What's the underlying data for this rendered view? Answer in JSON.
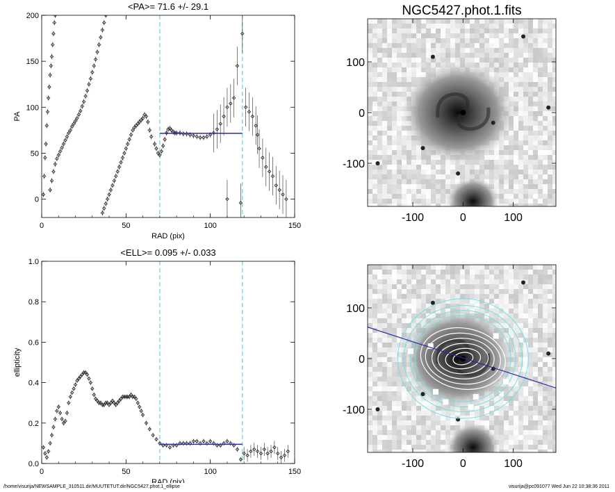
{
  "footer": {
    "path": "/home/visurija/NEWSAMPLE_310511.dir/MUUTETUT.dir/NGC5427.phot.1_ellipse",
    "user": "visurija@pc091077  Wed Jun 22 10:38:36 2011"
  },
  "chart_data": [
    {
      "type": "scatter",
      "title": "<PA>=  71.6 +/-  29.1",
      "xlabel": "RAD (pix)",
      "ylabel": "PA",
      "xlim": [
        0,
        150
      ],
      "ylim": [
        -20,
        200
      ],
      "xticks": [
        0,
        50,
        100,
        150
      ],
      "yticks": [
        0,
        50,
        100,
        150,
        200
      ],
      "fit_line": {
        "x": [
          70,
          119
        ],
        "y": 71.6
      },
      "region_bounds": [
        70,
        119
      ],
      "series": [
        {
          "points": [
            [
              1,
              5
            ],
            [
              1.5,
              25
            ],
            [
              2,
              45
            ],
            [
              2.5,
              60
            ],
            [
              3,
              80
            ],
            [
              3.5,
              95
            ],
            [
              4,
              110
            ],
            [
              4.5,
              122
            ],
            [
              5,
              135
            ],
            [
              5.5,
              145
            ],
            [
              6,
              155
            ],
            [
              6.5,
              168
            ],
            [
              7,
              180
            ],
            [
              7.5,
              192
            ],
            [
              8,
              200
            ]
          ]
        },
        {
          "points": [
            [
              5,
              10
            ],
            [
              6,
              20
            ],
            [
              7,
              30
            ],
            [
              8,
              38
            ],
            [
              9,
              44
            ],
            [
              10,
              48
            ],
            [
              11,
              52
            ],
            [
              12,
              56
            ],
            [
              13,
              60
            ],
            [
              14,
              64
            ],
            [
              15,
              68
            ],
            [
              16,
              72
            ],
            [
              17,
              75
            ],
            [
              18,
              79
            ],
            [
              19,
              82
            ],
            [
              20,
              85
            ],
            [
              21,
              88
            ],
            [
              22,
              92
            ],
            [
              23,
              96
            ],
            [
              24,
              101
            ],
            [
              25,
              106
            ],
            [
              26,
              112
            ],
            [
              27,
              118
            ],
            [
              28,
              125
            ],
            [
              29,
              131
            ],
            [
              30,
              138
            ],
            [
              31,
              145
            ],
            [
              32,
              152
            ],
            [
              33,
              160
            ],
            [
              34,
              168
            ],
            [
              35,
              176
            ],
            [
              36,
              184
            ],
            [
              37,
              192
            ],
            [
              38,
              200
            ]
          ]
        },
        {
          "points": [
            [
              36,
              -15
            ],
            [
              37,
              -10
            ],
            [
              38,
              -5
            ],
            [
              39,
              0
            ],
            [
              40,
              5
            ],
            [
              41,
              10
            ],
            [
              42,
              15
            ],
            [
              43,
              20
            ],
            [
              44,
              25
            ],
            [
              45,
              30
            ],
            [
              46,
              35
            ],
            [
              47,
              40
            ],
            [
              48,
              45
            ],
            [
              49,
              50
            ],
            [
              50,
              55
            ],
            [
              51,
              60
            ],
            [
              52,
              65
            ],
            [
              53,
              70
            ],
            [
              54,
              75
            ],
            [
              55,
              78
            ],
            [
              56,
              80
            ],
            [
              57,
              82
            ],
            [
              58,
              84
            ],
            [
              59,
              86
            ],
            [
              60,
              88
            ],
            [
              61,
              92
            ],
            [
              62,
              90
            ],
            [
              63,
              84
            ],
            [
              64,
              75
            ],
            [
              65,
              68
            ]
          ]
        },
        {
          "points": [
            [
              67,
              60
            ],
            [
              68,
              55
            ],
            [
              69,
              50
            ],
            [
              70,
              48
            ],
            [
              71,
              52
            ],
            [
              72,
              58
            ],
            [
              73,
              65
            ],
            [
              74,
              72
            ],
            [
              75,
              76
            ],
            [
              76,
              77
            ],
            [
              77,
              75
            ],
            [
              78,
              73
            ],
            [
              79,
              72
            ],
            [
              80,
              72
            ],
            [
              82,
              72
            ],
            [
              84,
              71
            ],
            [
              86,
              71
            ],
            [
              88,
              70
            ],
            [
              90,
              69
            ],
            [
              92,
              68
            ],
            [
              94,
              67
            ],
            [
              96,
              67
            ],
            [
              98,
              68
            ],
            [
              100,
              70
            ],
            [
              102,
              72
            ],
            [
              104,
              76
            ],
            [
              106,
              82
            ],
            [
              108,
              90
            ],
            [
              110,
              100
            ],
            [
              112,
              104
            ],
            [
              114,
              110
            ]
          ]
        },
        {
          "points": [
            [
              110,
              0
            ],
            [
              116,
              145
            ],
            [
              118,
              -4
            ],
            [
              119,
              180
            ],
            [
              121,
              100
            ],
            [
              123,
              95
            ],
            [
              125,
              90
            ],
            [
              127,
              80
            ],
            [
              128,
              70
            ],
            [
              129,
              55
            ],
            [
              131,
              45
            ],
            [
              133,
              35
            ],
            [
              135,
              30
            ],
            [
              137,
              25
            ],
            [
              139,
              15
            ],
            [
              141,
              10
            ],
            [
              143,
              5
            ],
            [
              145,
              0
            ]
          ]
        }
      ]
    },
    {
      "type": "scatter",
      "title": "<ELL>= 0.095 +/-  0.033",
      "xlabel": "RAD (pix)",
      "ylabel": "ellipticity",
      "xlim": [
        0,
        150
      ],
      "ylim": [
        0,
        1
      ],
      "xticks": [
        0,
        50,
        100,
        150
      ],
      "yticks": [
        0.0,
        0.2,
        0.4,
        0.6,
        0.8,
        1.0
      ],
      "fit_line": {
        "x": [
          70,
          119
        ],
        "y": 0.095
      },
      "region_bounds": [
        70,
        119
      ],
      "series": [
        {
          "points": [
            [
              1,
              0.08
            ],
            [
              2,
              0.05
            ],
            [
              3,
              0.03
            ],
            [
              4,
              0.06
            ],
            [
              5,
              0.1
            ],
            [
              6,
              0.14
            ],
            [
              7,
              0.18
            ],
            [
              8,
              0.22
            ],
            [
              9,
              0.26
            ],
            [
              10,
              0.28
            ],
            [
              11,
              0.25
            ],
            [
              12,
              0.22
            ],
            [
              13,
              0.2
            ],
            [
              14,
              0.21
            ],
            [
              15,
              0.25
            ],
            [
              16,
              0.3
            ],
            [
              17,
              0.33
            ],
            [
              18,
              0.35
            ],
            [
              19,
              0.37
            ],
            [
              20,
              0.39
            ],
            [
              21,
              0.41
            ],
            [
              22,
              0.42
            ],
            [
              23,
              0.43
            ],
            [
              24,
              0.44
            ],
            [
              25,
              0.45
            ],
            [
              26,
              0.45
            ],
            [
              27,
              0.44
            ],
            [
              28,
              0.42
            ],
            [
              29,
              0.4
            ],
            [
              30,
              0.37
            ],
            [
              31,
              0.34
            ],
            [
              32,
              0.32
            ],
            [
              33,
              0.31
            ],
            [
              34,
              0.3
            ],
            [
              35,
              0.3
            ],
            [
              36,
              0.29
            ],
            [
              37,
              0.29
            ],
            [
              38,
              0.3
            ],
            [
              39,
              0.3
            ],
            [
              40,
              0.29
            ],
            [
              41,
              0.3
            ],
            [
              42,
              0.31
            ],
            [
              43,
              0.3
            ],
            [
              44,
              0.29
            ],
            [
              45,
              0.3
            ],
            [
              46,
              0.31
            ],
            [
              47,
              0.32
            ],
            [
              48,
              0.33
            ],
            [
              49,
              0.33
            ],
            [
              50,
              0.33
            ],
            [
              51,
              0.33
            ],
            [
              52,
              0.33
            ],
            [
              53,
              0.34
            ],
            [
              54,
              0.33
            ],
            [
              55,
              0.33
            ],
            [
              56,
              0.32
            ],
            [
              57,
              0.3
            ],
            [
              58,
              0.28
            ],
            [
              59,
              0.26
            ],
            [
              60,
              0.24
            ],
            [
              62,
              0.2
            ],
            [
              64,
              0.17
            ],
            [
              66,
              0.14
            ],
            [
              68,
              0.12
            ],
            [
              70,
              0.1
            ],
            [
              72,
              0.09
            ],
            [
              74,
              0.09
            ],
            [
              76,
              0.08
            ],
            [
              78,
              0.09
            ],
            [
              80,
              0.09
            ],
            [
              82,
              0.1
            ],
            [
              84,
              0.1
            ],
            [
              86,
              0.1
            ],
            [
              88,
              0.1
            ],
            [
              90,
              0.11
            ],
            [
              92,
              0.11
            ],
            [
              94,
              0.1
            ],
            [
              96,
              0.11
            ],
            [
              98,
              0.1
            ],
            [
              100,
              0.11
            ],
            [
              102,
              0.1
            ],
            [
              104,
              0.09
            ],
            [
              106,
              0.09
            ],
            [
              108,
              0.1
            ],
            [
              110,
              0.11
            ],
            [
              112,
              0.1
            ],
            [
              114,
              0.09
            ],
            [
              116,
              0.07
            ],
            [
              118,
              0.02
            ],
            [
              120,
              0.05
            ],
            [
              122,
              0.04
            ],
            [
              124,
              0.06
            ],
            [
              126,
              0.07
            ],
            [
              128,
              0.06
            ],
            [
              130,
              0.05
            ],
            [
              132,
              0.07
            ],
            [
              134,
              0.05
            ],
            [
              136,
              0.06
            ],
            [
              138,
              0.08
            ],
            [
              140,
              0.05
            ],
            [
              142,
              0.03
            ],
            [
              144,
              0.04
            ],
            [
              146,
              0.06
            ]
          ]
        }
      ]
    },
    {
      "type": "heatmap",
      "title": "NGC5427.phot.1.fits",
      "xlim": [
        -190,
        185
      ],
      "ylim": [
        -185,
        185
      ],
      "xticks": [
        -100,
        0,
        100
      ],
      "yticks": [
        -100,
        0,
        100
      ],
      "overlay_ellipses": false
    },
    {
      "type": "heatmap",
      "title": "",
      "xlim": [
        -190,
        185
      ],
      "ylim": [
        -185,
        185
      ],
      "xticks": [
        -100,
        0,
        100
      ],
      "yticks": [
        -100,
        0,
        100
      ],
      "overlay_ellipses": true,
      "pa_line": {
        "pa_deg": 71.6
      }
    }
  ]
}
